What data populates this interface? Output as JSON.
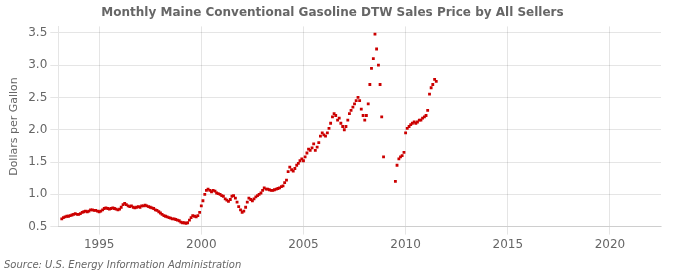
{
  "chart_data": {
    "type": "scatter",
    "title": "Monthly Maine Conventional Gasoline DTW Sales Price by All Sellers",
    "ylabel": "Dollars per Gallon",
    "annotation": "Source: U.S. Energy Information Administration",
    "color": "#cc0000",
    "marker": "square",
    "grid": true,
    "xlim": [
      1993.0,
      2022.5
    ],
    "ylim": [
      0.5,
      3.6
    ],
    "xticks": [
      1995,
      2000,
      2005,
      2010,
      2015,
      2020
    ],
    "yticks": [
      0.5,
      {
        "value": 1.0,
        "label": "1.0"
      },
      1.5,
      {
        "value": 2.0,
        "label": "2.0"
      },
      2.5,
      {
        "value": 3.0,
        "label": "3.0"
      },
      3.5
    ],
    "x": [
      1993.17,
      1993.25,
      1993.33,
      1993.42,
      1993.5,
      1993.58,
      1993.67,
      1993.75,
      1993.83,
      1993.92,
      1994.0,
      1994.08,
      1994.17,
      1994.25,
      1994.33,
      1994.42,
      1994.5,
      1994.58,
      1994.67,
      1994.75,
      1994.83,
      1994.92,
      1995.0,
      1995.08,
      1995.17,
      1995.25,
      1995.33,
      1995.42,
      1995.5,
      1995.58,
      1995.67,
      1995.75,
      1995.83,
      1995.92,
      1996.0,
      1996.08,
      1996.17,
      1996.25,
      1996.33,
      1996.42,
      1996.5,
      1996.58,
      1996.67,
      1996.75,
      1996.83,
      1996.92,
      1997.0,
      1997.08,
      1997.17,
      1997.25,
      1997.33,
      1997.42,
      1997.5,
      1997.58,
      1997.67,
      1997.75,
      1997.83,
      1997.92,
      1998.0,
      1998.08,
      1998.17,
      1998.25,
      1998.33,
      1998.42,
      1998.5,
      1998.58,
      1998.67,
      1998.75,
      1998.83,
      1998.92,
      1999.0,
      1999.08,
      1999.17,
      1999.25,
      1999.33,
      1999.42,
      1999.5,
      1999.58,
      1999.67,
      1999.75,
      1999.83,
      1999.92,
      2000.0,
      2000.08,
      2000.17,
      2000.25,
      2000.33,
      2000.42,
      2000.5,
      2000.58,
      2000.67,
      2000.75,
      2000.83,
      2000.92,
      2001.0,
      2001.08,
      2001.17,
      2001.25,
      2001.33,
      2001.42,
      2001.5,
      2001.58,
      2001.67,
      2001.75,
      2001.83,
      2001.92,
      2002.0,
      2002.08,
      2002.17,
      2002.25,
      2002.33,
      2002.42,
      2002.5,
      2002.58,
      2002.67,
      2002.75,
      2002.83,
      2002.92,
      2003.0,
      2003.08,
      2003.17,
      2003.25,
      2003.33,
      2003.42,
      2003.5,
      2003.58,
      2003.67,
      2003.75,
      2003.83,
      2003.92,
      2004.0,
      2004.08,
      2004.17,
      2004.25,
      2004.33,
      2004.42,
      2004.5,
      2004.58,
      2004.67,
      2004.75,
      2004.83,
      2004.92,
      2005.0,
      2005.08,
      2005.17,
      2005.25,
      2005.33,
      2005.42,
      2005.5,
      2005.58,
      2005.67,
      2005.75,
      2005.83,
      2005.92,
      2006.0,
      2006.08,
      2006.17,
      2006.25,
      2006.33,
      2006.42,
      2006.5,
      2006.58,
      2006.67,
      2006.75,
      2006.83,
      2006.92,
      2007.0,
      2007.08,
      2007.17,
      2007.25,
      2007.33,
      2007.42,
      2007.5,
      2007.58,
      2007.67,
      2007.75,
      2007.83,
      2007.92,
      2008.0,
      2008.08,
      2008.17,
      2008.25,
      2008.33,
      2008.42,
      2008.5,
      2008.58,
      2008.67,
      2008.75,
      2008.83,
      2008.92,
      2009.5,
      2009.58,
      2009.67,
      2009.75,
      2009.83,
      2009.92,
      2010.0,
      2010.08,
      2010.17,
      2010.25,
      2010.33,
      2010.42,
      2010.5,
      2010.58,
      2010.67,
      2010.75,
      2010.83,
      2010.92,
      2011.0,
      2011.08,
      2011.17,
      2011.25,
      2011.33,
      2011.42,
      2011.5
    ],
    "values": [
      0.62,
      0.64,
      0.65,
      0.66,
      0.66,
      0.67,
      0.68,
      0.69,
      0.7,
      0.69,
      0.69,
      0.7,
      0.72,
      0.73,
      0.74,
      0.73,
      0.74,
      0.76,
      0.76,
      0.75,
      0.75,
      0.74,
      0.73,
      0.74,
      0.76,
      0.78,
      0.79,
      0.78,
      0.77,
      0.78,
      0.79,
      0.78,
      0.77,
      0.76,
      0.77,
      0.8,
      0.84,
      0.86,
      0.84,
      0.82,
      0.81,
      0.82,
      0.8,
      0.79,
      0.8,
      0.81,
      0.8,
      0.82,
      0.82,
      0.83,
      0.82,
      0.81,
      0.8,
      0.79,
      0.78,
      0.76,
      0.75,
      0.73,
      0.71,
      0.69,
      0.67,
      0.66,
      0.65,
      0.64,
      0.63,
      0.62,
      0.62,
      0.61,
      0.6,
      0.59,
      0.57,
      0.56,
      0.56,
      0.55,
      0.56,
      0.6,
      0.64,
      0.67,
      0.66,
      0.65,
      0.67,
      0.72,
      0.82,
      0.9,
      1.0,
      1.06,
      1.08,
      1.06,
      1.04,
      1.06,
      1.05,
      1.02,
      1.01,
      1.0,
      0.98,
      0.97,
      0.93,
      0.91,
      0.89,
      0.92,
      0.97,
      0.98,
      0.94,
      0.88,
      0.81,
      0.76,
      0.72,
      0.74,
      0.8,
      0.88,
      0.94,
      0.92,
      0.9,
      0.93,
      0.96,
      0.98,
      1.0,
      1.02,
      1.06,
      1.1,
      1.08,
      1.08,
      1.07,
      1.06,
      1.06,
      1.07,
      1.08,
      1.09,
      1.1,
      1.12,
      1.13,
      1.18,
      1.22,
      1.35,
      1.42,
      1.38,
      1.36,
      1.4,
      1.45,
      1.48,
      1.52,
      1.55,
      1.52,
      1.58,
      1.64,
      1.7,
      1.68,
      1.72,
      1.78,
      1.68,
      1.73,
      1.8,
      1.9,
      1.95,
      1.92,
      1.9,
      1.95,
      2.02,
      2.1,
      2.2,
      2.25,
      2.22,
      2.15,
      2.18,
      2.1,
      2.05,
      2.0,
      2.05,
      2.15,
      2.25,
      2.3,
      2.35,
      2.4,
      2.45,
      2.5,
      2.45,
      2.32,
      2.22,
      2.15,
      2.22,
      2.4,
      2.7,
      2.95,
      3.1,
      3.48,
      3.25,
      3.0,
      2.7,
      2.2,
      1.58,
      1.2,
      1.45,
      1.55,
      1.58,
      1.6,
      1.65,
      1.95,
      2.02,
      2.05,
      2.08,
      2.1,
      2.12,
      2.1,
      2.12,
      2.15,
      2.15,
      2.18,
      2.2,
      2.22,
      2.3,
      2.55,
      2.65,
      2.7,
      2.78,
      2.75
    ]
  }
}
